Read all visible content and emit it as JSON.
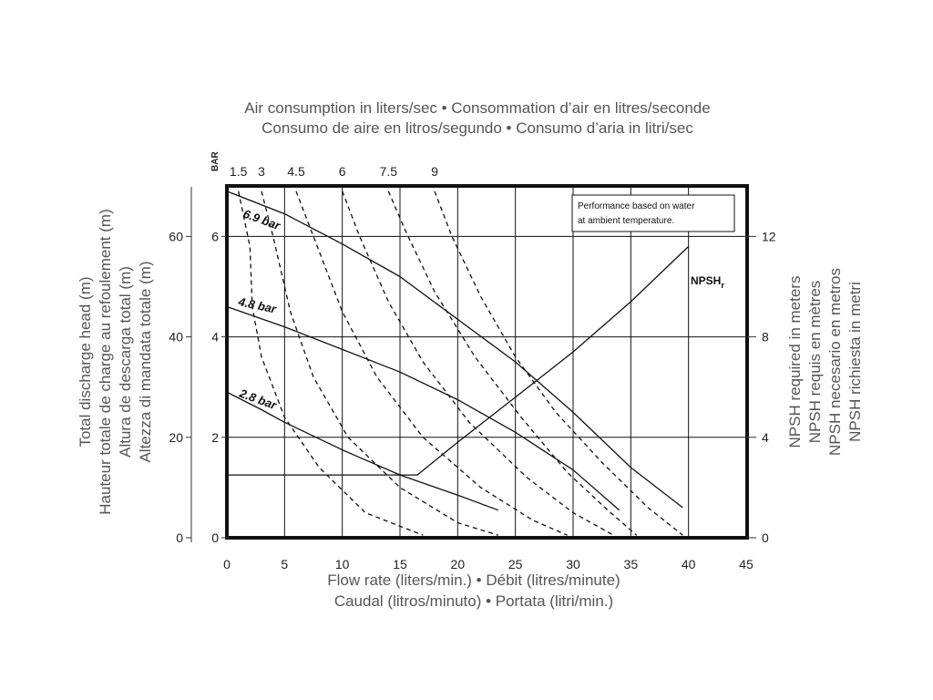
{
  "chart_data": {
    "type": "line",
    "title_lines": [
      "Air consumption in liters/sec • Consommation d’air en litres/seconde",
      "Consumo de aire en litros/segundo • Consumo d’aria in litri/sec"
    ],
    "xlabel_lines": [
      "Flow rate (liters/min.) • Débit (litres/minute)",
      "Caudal (litros/minuto) • Portata (litri/min.)"
    ],
    "ylabel_left_lines": [
      "Total discharge head (m)",
      "Hauteur totale de charge au refoulement (m)",
      "Altura de descarga total (m)",
      "Altezza di mandata totale (m)"
    ],
    "ylabel_right_lines": [
      "NPSH required in meters",
      "NPSH requis en mètres",
      "NPSH necesario en metros",
      "NPSH richiesta in metri"
    ],
    "xlim": [
      0,
      45
    ],
    "ylim_left_m": [
      0,
      70
    ],
    "ylim_right_npsh": [
      0,
      14
    ],
    "ylim_bar": [
      0,
      7
    ],
    "x_ticks": [
      "0",
      "5",
      "10",
      "15",
      "20",
      "25",
      "30",
      "35",
      "40",
      "45"
    ],
    "y_ticks_left_m": [
      "0",
      "20",
      "40",
      "60"
    ],
    "y_ticks_left_bar": [
      "0",
      "2",
      "4",
      "6"
    ],
    "y_ticks_right": [
      "0",
      "4",
      "8",
      "12"
    ],
    "air_axis_unit": "BAR",
    "air_axis_ticks": [
      "1.5",
      "3",
      "4.5",
      "6",
      "7.5",
      "9"
    ],
    "note_lines": [
      "Performance based on water",
      "at ambient temperature."
    ],
    "grid": true,
    "series": [
      {
        "name": "6.9 bar",
        "style": "solid",
        "points": [
          [
            0,
            6.9
          ],
          [
            5,
            6.45
          ],
          [
            10,
            5.85
          ],
          [
            15,
            5.2
          ],
          [
            20,
            4.35
          ],
          [
            25,
            3.5
          ],
          [
            30,
            2.5
          ],
          [
            35,
            1.4
          ],
          [
            39.5,
            0.6
          ]
        ]
      },
      {
        "name": "4.8 bar",
        "style": "solid",
        "points": [
          [
            0,
            4.6
          ],
          [
            5,
            4.2
          ],
          [
            10,
            3.75
          ],
          [
            15,
            3.3
          ],
          [
            20,
            2.75
          ],
          [
            25,
            2.1
          ],
          [
            30,
            1.35
          ],
          [
            34,
            0.55
          ]
        ]
      },
      {
        "name": "2.8 bar",
        "style": "solid",
        "points": [
          [
            0,
            2.9
          ],
          [
            3,
            2.55
          ],
          [
            5,
            2.3
          ],
          [
            10,
            1.75
          ],
          [
            15,
            1.25
          ],
          [
            20,
            0.85
          ],
          [
            23.5,
            0.55
          ]
        ]
      },
      {
        "name": "NPSHr",
        "style": "solid",
        "axis": "right",
        "points": [
          [
            0,
            2.5
          ],
          [
            16.5,
            2.5
          ],
          [
            20,
            3.8
          ],
          [
            25,
            5.6
          ],
          [
            30,
            7.4
          ],
          [
            35,
            9.4
          ],
          [
            40,
            11.6
          ]
        ]
      },
      {
        "name": "1.5",
        "style": "dashed",
        "points": [
          [
            1.0,
            6.9
          ],
          [
            2.0,
            5.8
          ],
          [
            2.2,
            4.6
          ],
          [
            3,
            3.6
          ],
          [
            5,
            2.4
          ],
          [
            8,
            1.4
          ],
          [
            12,
            0.5
          ],
          [
            17,
            0.05
          ]
        ]
      },
      {
        "name": "3",
        "style": "dashed",
        "points": [
          [
            3.0,
            6.9
          ],
          [
            4.0,
            6.0
          ],
          [
            5.5,
            4.5
          ],
          [
            7.5,
            3.2
          ],
          [
            10.5,
            2.0
          ],
          [
            15,
            1.0
          ],
          [
            20,
            0.3
          ],
          [
            23.5,
            0.05
          ]
        ]
      },
      {
        "name": "4.5",
        "style": "dashed",
        "points": [
          [
            6.0,
            6.9
          ],
          [
            7.5,
            6.0
          ],
          [
            10,
            4.5
          ],
          [
            13,
            3.2
          ],
          [
            17,
            2.0
          ],
          [
            22,
            1.0
          ],
          [
            26.5,
            0.35
          ],
          [
            29.5,
            0.05
          ]
        ]
      },
      {
        "name": "6",
        "style": "dashed",
        "points": [
          [
            10.0,
            6.9
          ],
          [
            11.5,
            6.0
          ],
          [
            14,
            4.7
          ],
          [
            17,
            3.5
          ],
          [
            21,
            2.3
          ],
          [
            26,
            1.2
          ],
          [
            30,
            0.5
          ],
          [
            33.5,
            0.05
          ]
        ]
      },
      {
        "name": "7.5",
        "style": "dashed",
        "points": [
          [
            14.0,
            6.9
          ],
          [
            15.5,
            6.1
          ],
          [
            18,
            4.9
          ],
          [
            21.5,
            3.6
          ],
          [
            25.5,
            2.4
          ],
          [
            29.5,
            1.3
          ],
          [
            33,
            0.55
          ],
          [
            35.5,
            0.05
          ]
        ]
      },
      {
        "name": "9",
        "style": "dashed",
        "points": [
          [
            18.0,
            6.9
          ],
          [
            19.5,
            6.0
          ],
          [
            22,
            4.8
          ],
          [
            25,
            3.6
          ],
          [
            28.5,
            2.5
          ],
          [
            32.5,
            1.5
          ],
          [
            36.5,
            0.6
          ],
          [
            39.5,
            0.05
          ]
        ]
      }
    ]
  }
}
